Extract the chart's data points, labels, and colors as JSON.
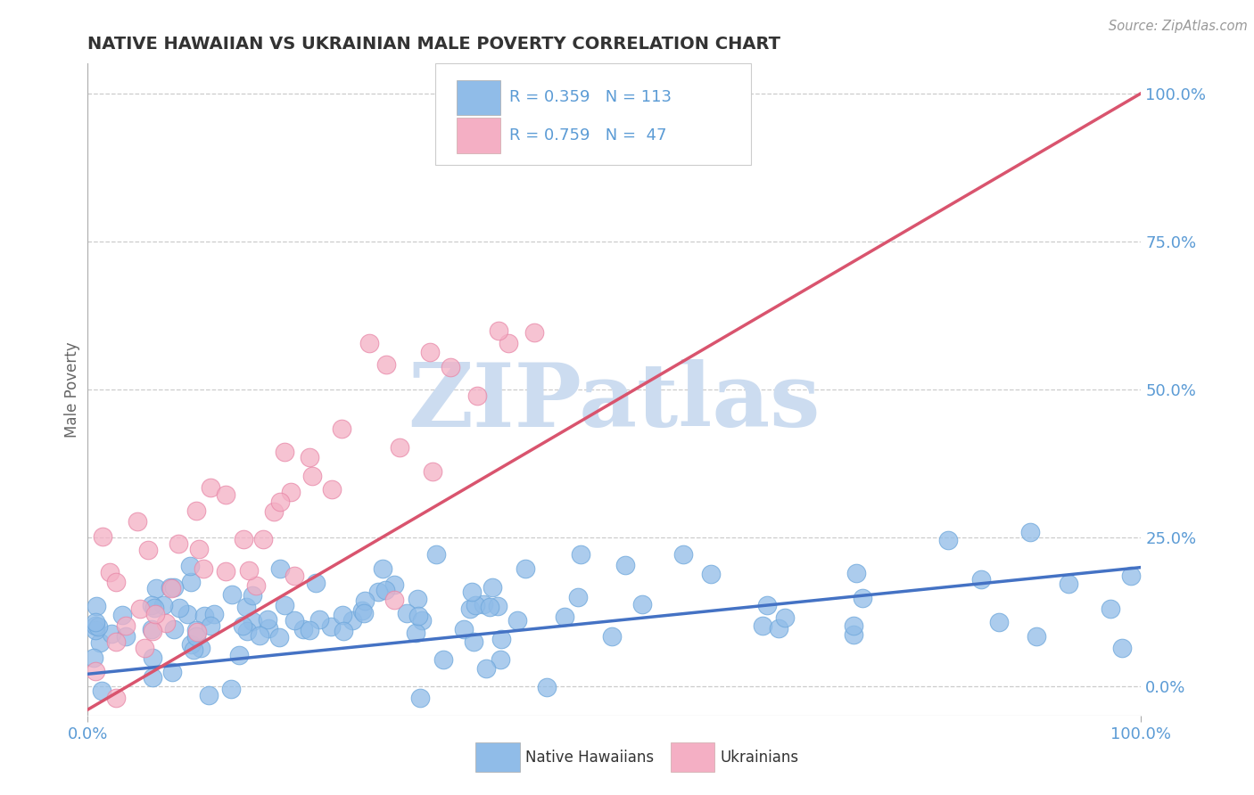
{
  "title": "NATIVE HAWAIIAN VS UKRAINIAN MALE POVERTY CORRELATION CHART",
  "source_text": "Source: ZipAtlas.com",
  "ylabel": "Male Poverty",
  "xlim": [
    0,
    1
  ],
  "ylim": [
    -0.05,
    1.05
  ],
  "ytick_values": [
    0.0,
    0.25,
    0.5,
    0.75,
    1.0
  ],
  "ytick_labels": [
    "0.0%",
    "25.0%",
    "50.0%",
    "75.0%",
    "100.0%"
  ],
  "background_color": "#ffffff",
  "watermark_text": "ZIPatlas",
  "group1_name": "Native Hawaiians",
  "group1_color": "#90bce8",
  "group1_edge": "#6fa8dc",
  "group1_R": 0.359,
  "group1_N": 113,
  "group2_name": "Ukrainians",
  "group2_color": "#f4afc4",
  "group2_edge": "#e888a8",
  "group2_R": 0.759,
  "group2_N": 47,
  "line1_color": "#4472c4",
  "line2_color": "#d9546e",
  "line1_y0": 0.02,
  "line1_y1": 0.2,
  "line2_y0": -0.04,
  "line2_y1": 1.0,
  "grid_color": "#cccccc",
  "axis_color": "#5b9bd5",
  "title_color": "#333333",
  "watermark_color": "#ccdcf0",
  "legend_text_color": "#5b9bd5",
  "legend_label_color": "#333333",
  "source_color": "#999999"
}
